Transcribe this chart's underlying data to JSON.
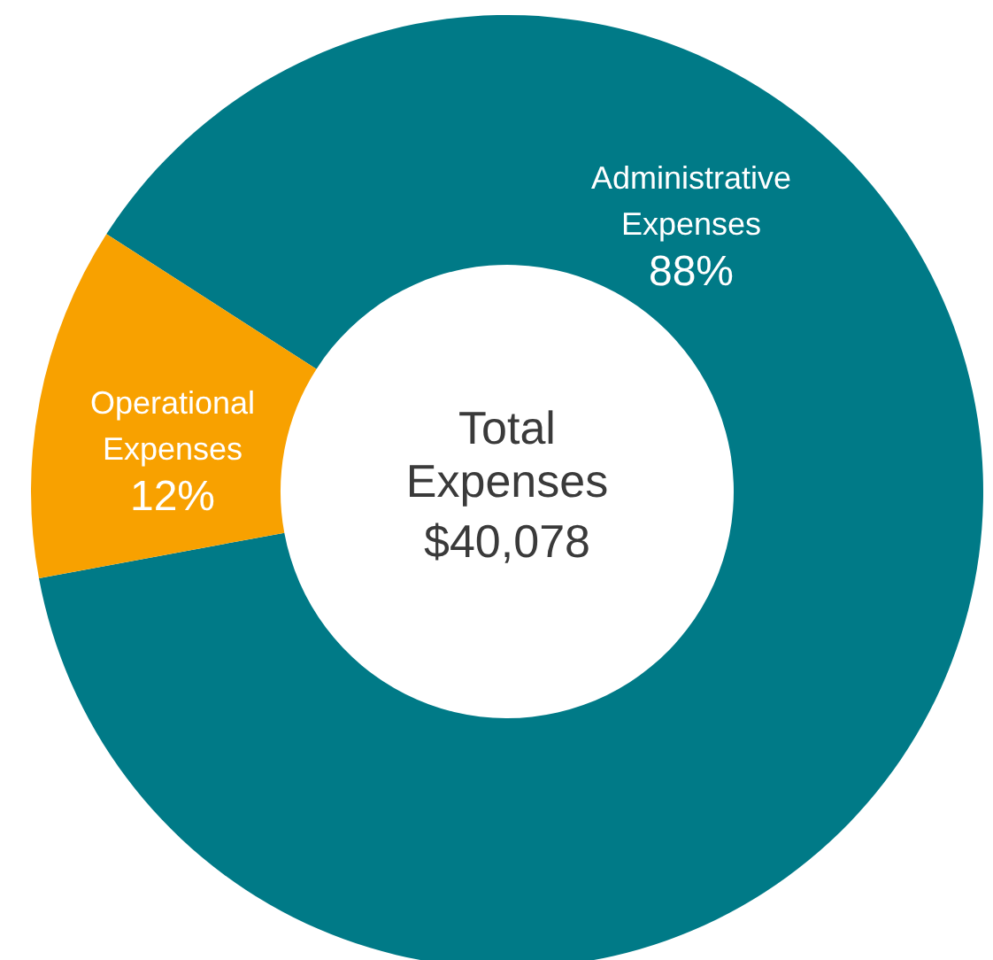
{
  "chart_data": {
    "type": "donut",
    "title": "Total Expenses",
    "subtitle": "$40,078",
    "categories": [
      "Administrative Expenses",
      "Operational Expenses"
    ],
    "values": [
      88,
      12
    ],
    "colors": [
      "#007a87",
      "#f8a100"
    ],
    "value_labels": [
      "88%",
      "12%"
    ]
  }
}
